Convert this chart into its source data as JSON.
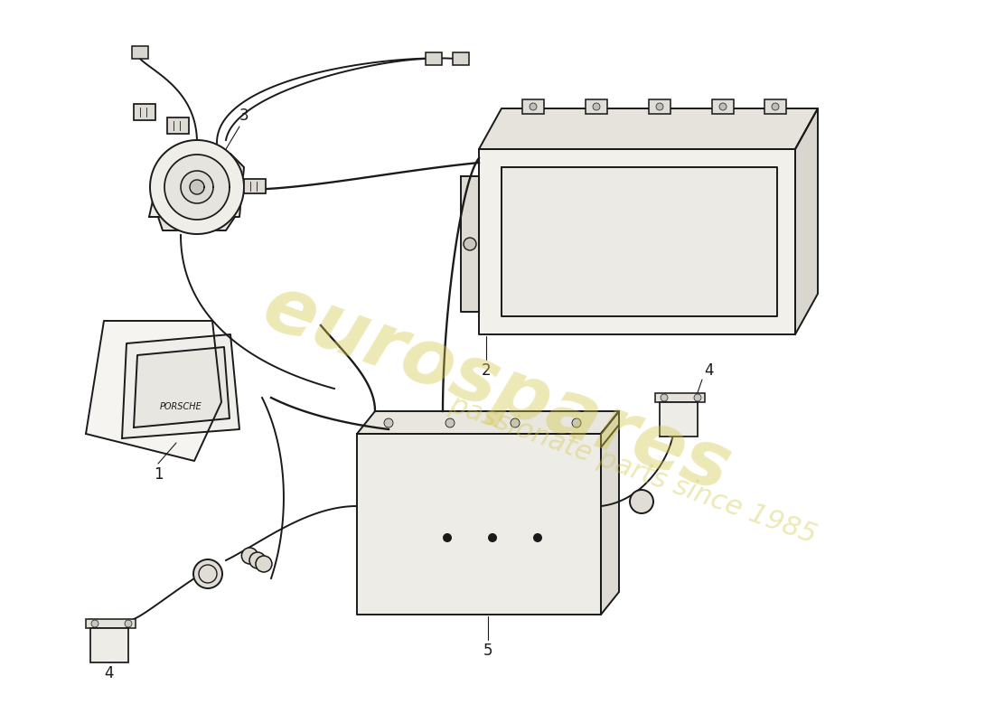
{
  "background_color": "#ffffff",
  "line_color": "#1a1a1a",
  "line_width": 1.4,
  "watermark_text": "eurospares",
  "watermark_subtext": "passionate parts since 1985",
  "watermark_color": "#d4c84a",
  "watermark_alpha": 0.4
}
